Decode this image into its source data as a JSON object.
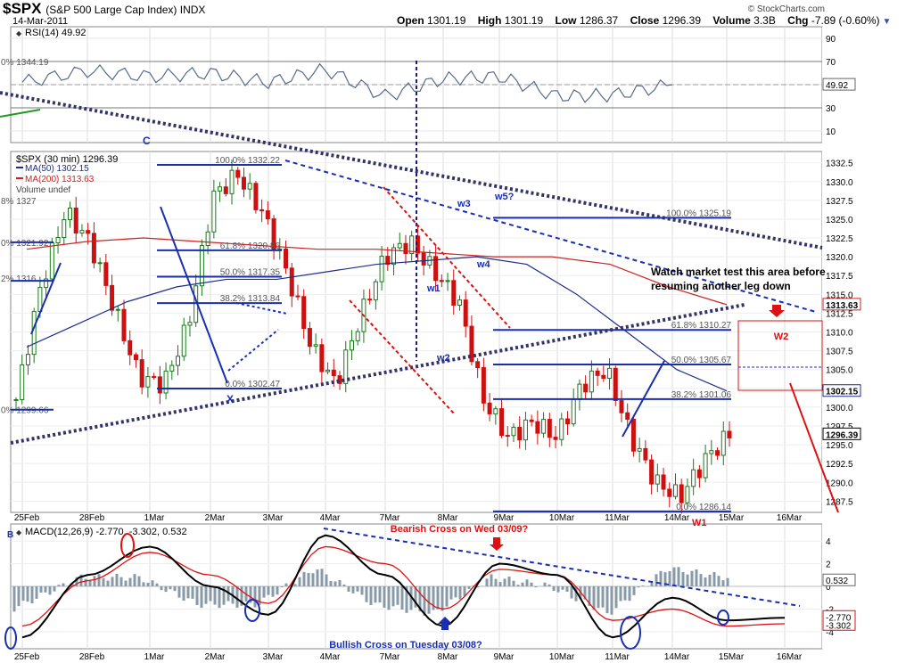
{
  "header": {
    "symbol": "$SPX",
    "name": "(S&P 500 Large Cap Index) INDX",
    "date": "14-Mar-2011",
    "copyright": "© StockCharts.com",
    "open_label": "Open",
    "open": "1301.19",
    "high_label": "High",
    "high": "1301.19",
    "low_label": "Low",
    "low": "1286.37",
    "close_label": "Close",
    "close": "1296.39",
    "volume_label": "Volume",
    "volume": "3.3B",
    "chg_label": "Chg",
    "chg": "-7.89 (-0.60%)"
  },
  "colors": {
    "price": "#000000",
    "ma50": "#1c2c8c",
    "ma200": "#cc2222",
    "fib": "#1a2fb0",
    "trend_dark": "#333366",
    "trend_blue": "#1a2fb0",
    "annot_red": "#dd1111",
    "rsi_line": "#5a6a8a",
    "macd_line": "#000000",
    "signal_line": "#dd1111",
    "histogram": "#8899aa",
    "bg_band": "#f4f4f4"
  },
  "chart_data": [
    {
      "type": "line",
      "panel": "RSI",
      "legend": "RSI(14) 49.92",
      "x": [
        "25Feb",
        "28Feb",
        "1Mar",
        "2Mar",
        "3Mar",
        "4Mar",
        "7Mar",
        "8Mar",
        "9Mar",
        "10Mar",
        "11Mar",
        "14Mar"
      ],
      "values": [
        52,
        62,
        57,
        60,
        52,
        63,
        40,
        55,
        57,
        40,
        41,
        49.92
      ],
      "ylim": [
        0,
        100
      ],
      "ticks": [
        10,
        30,
        50,
        70,
        90
      ],
      "reference_lines": [
        30,
        70
      ],
      "left_labels": [
        "0% 1344.19"
      ],
      "last_value_label": "49.92"
    },
    {
      "type": "candlestick",
      "panel": "Price",
      "title": "$SPX (30 min) 1296.39",
      "legend": [
        "MA(50) 1302.15",
        "MA(200) 1313.63",
        "Volume undef"
      ],
      "x": [
        "25Feb",
        "28Feb",
        "1Mar",
        "2Mar",
        "3Mar",
        "4Mar",
        "7Mar",
        "8Mar",
        "9Mar",
        "10Mar",
        "11Mar",
        "14Mar",
        "15Mar",
        "16Mar"
      ],
      "close_series": [
        1301,
        1316,
        1326,
        1322,
        1313,
        1304,
        1303,
        1311,
        1328,
        1331,
        1326,
        1318,
        1308,
        1303,
        1312,
        1320,
        1322,
        1318,
        1314,
        1301,
        1296,
        1298,
        1296,
        1303,
        1305,
        1296,
        1290,
        1288,
        1293,
        1296.39
      ],
      "ma50_series": [
        1308,
        1311,
        1314,
        1316,
        1317,
        1317,
        1318,
        1319,
        1319.5,
        1320,
        1319,
        1315,
        1310,
        1305,
        1302.15
      ],
      "ma200_series": [
        1321,
        1322,
        1322.5,
        1322,
        1321.5,
        1321,
        1321,
        1320.5,
        1320,
        1320,
        1319,
        1316,
        1313.63
      ],
      "ylim": [
        1286,
        1334
      ],
      "ticks": [
        "1287.5",
        "1290.0",
        "1292.5",
        "1295.0",
        "1297.5",
        "1300.0",
        "1302.5",
        "1305.0",
        "1307.5",
        "1310.0",
        "1312.5",
        "1315.0",
        "1317.5",
        "1320.0",
        "1322.5",
        "1325.0",
        "1327.5",
        "1330.0",
        "1332.5"
      ],
      "price_labels": [
        "1313.63",
        "1302.15",
        "1296.39"
      ],
      "left_fib_labels": [
        "8% 1327",
        "0% 1321.92",
        "2% 1316",
        "0% 1299.66"
      ],
      "fib_levels_1": [
        "100.0% 1332.22",
        "61.8% 1320.86",
        "50.0% 1317.35",
        "38.2% 1313.84",
        "0.0% 1302.47"
      ],
      "fib_levels_2": [
        "100.0% 1325.19",
        "61.8% 1310.27",
        "50.0% 1305.67",
        "38.2% 1301.06",
        "0.0% 1286.14"
      ],
      "annotations": [
        "C",
        "X",
        "w1",
        "w2",
        "w3",
        "w4",
        "w5?",
        "W1",
        "W2",
        "Watch market test this area before",
        "resuming another leg down"
      ]
    },
    {
      "type": "line",
      "panel": "MACD",
      "legend": "MACD(12,26,9) -2.770, -3.302, 0.532",
      "x": [
        "25Feb",
        "28Feb",
        "1Mar",
        "2Mar",
        "3Mar",
        "4Mar",
        "7Mar",
        "8Mar",
        "9Mar",
        "10Mar",
        "11Mar",
        "14Mar",
        "15Mar",
        "16Mar"
      ],
      "series": [
        {
          "name": "MACD",
          "values": [
            -4.5,
            1,
            3.5,
            0,
            -2.5,
            4.5,
            1,
            -3.5,
            2,
            1,
            -4.5,
            -1,
            -3,
            -2.77
          ]
        },
        {
          "name": "Signal",
          "values": [
            -3.5,
            0.5,
            3,
            1,
            -1.5,
            3.5,
            2,
            -2,
            1.5,
            1,
            -3,
            -2,
            -3.5,
            -3.302
          ]
        }
      ],
      "histogram_last": 0.532,
      "ylim": [
        -5.5,
        5.5
      ],
      "ticks": [
        -4,
        -2,
        0,
        2,
        4
      ],
      "value_labels": [
        "0.532",
        "-2.770",
        "-3.302"
      ],
      "annotations": [
        "Bearish Cross on Wed 03/09?",
        "Bullish Cross on Tuesday 03/08?"
      ],
      "side_letter": "B"
    }
  ]
}
